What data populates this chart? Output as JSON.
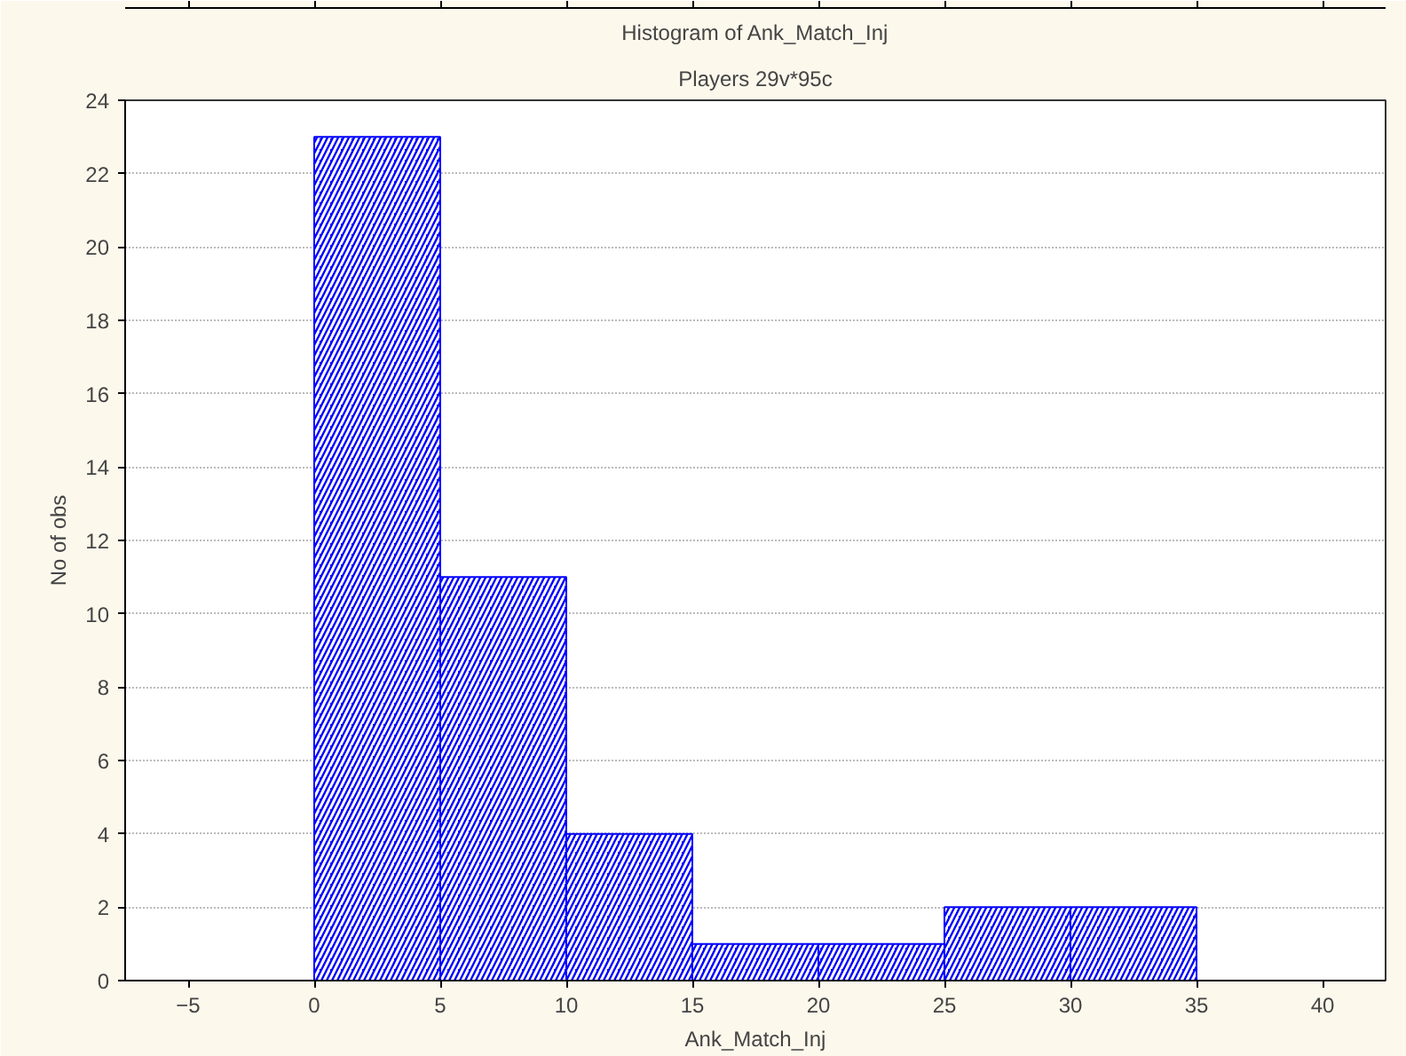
{
  "chart_data": {
    "type": "histogram",
    "title": "Histogram of Ank_Match_Inj",
    "subtitle": "Players 29v*95c",
    "xlabel": "Ank_Match_Inj",
    "ylabel": "No of obs",
    "bins": [
      0,
      5,
      10,
      15,
      20,
      25,
      30,
      35
    ],
    "values": [
      23,
      11,
      4,
      1,
      1,
      2,
      2
    ],
    "color": "#0000ff",
    "xlim": [
      -7.5,
      42.5
    ],
    "xticks": [
      -5,
      0,
      5,
      10,
      15,
      20,
      25,
      30,
      35,
      40
    ],
    "ylim": [
      0,
      24
    ],
    "yticks": [
      0,
      2,
      4,
      6,
      8,
      10,
      12,
      14,
      16,
      18,
      20,
      22,
      24
    ],
    "grid": "y"
  }
}
